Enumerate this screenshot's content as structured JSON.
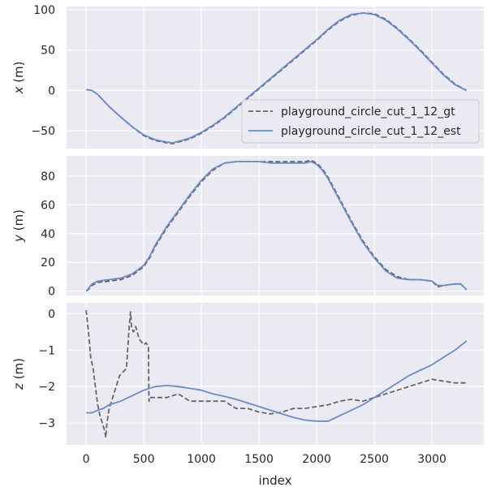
{
  "chart_data": [
    {
      "type": "line",
      "ylabel_var": "x",
      "ylabel_unit": " (m)",
      "xlim": [
        -170,
        3450
      ],
      "ylim": [
        -72,
        104
      ],
      "yticks": [
        -50,
        0,
        50,
        100
      ],
      "xticks": [
        0,
        500,
        1000,
        1500,
        2000,
        2500,
        3000
      ],
      "show_xtick_labels": false,
      "grid": true,
      "legend": "center-right",
      "series": [
        {
          "name": "playground_circle_cut_1_12_gt",
          "color": "#666666",
          "dashed": true,
          "x": [
            0,
            50,
            100,
            200,
            300,
            400,
            500,
            600,
            700,
            750,
            800,
            900,
            1000,
            1100,
            1200,
            1300,
            1400,
            1500,
            1600,
            1700,
            1800,
            1900,
            2000,
            2100,
            2200,
            2300,
            2400,
            2500,
            2600,
            2700,
            2800,
            2900,
            3000,
            3100,
            3200,
            3300
          ],
          "y": [
            1,
            0,
            -5,
            -20,
            -33,
            -45,
            -56,
            -62,
            -65,
            -66,
            -64,
            -60,
            -53,
            -44,
            -34,
            -22,
            -10,
            2,
            14,
            26,
            38,
            50,
            62,
            75,
            86,
            93,
            96,
            95,
            88,
            77,
            64,
            50,
            35,
            20,
            8,
            0
          ]
        },
        {
          "name": "playground_circle_cut_1_12_est",
          "color": "#6b8cc4",
          "dashed": false,
          "x": [
            0,
            50,
            100,
            200,
            300,
            400,
            500,
            600,
            700,
            750,
            800,
            900,
            1000,
            1100,
            1200,
            1300,
            1400,
            1500,
            1600,
            1700,
            1800,
            1900,
            2000,
            2100,
            2200,
            2300,
            2400,
            2500,
            2600,
            2700,
            2800,
            2900,
            3000,
            3100,
            3200,
            3300
          ],
          "y": [
            1,
            0,
            -5,
            -20,
            -33,
            -45,
            -55,
            -61,
            -64,
            -65,
            -63,
            -59,
            -52,
            -43,
            -33,
            -21,
            -9,
            3,
            15,
            27,
            39,
            51,
            63,
            76,
            87,
            94,
            96,
            94,
            87,
            76,
            63,
            49,
            34,
            19,
            7,
            0
          ]
        }
      ]
    },
    {
      "type": "line",
      "ylabel_var": "y",
      "ylabel_unit": " (m)",
      "xlim": [
        -170,
        3450
      ],
      "ylim": [
        -3,
        94
      ],
      "yticks": [
        0,
        20,
        40,
        60,
        80
      ],
      "xticks": [
        0,
        500,
        1000,
        1500,
        2000,
        2500,
        3000
      ],
      "show_xtick_labels": false,
      "grid": true,
      "series": [
        {
          "name": "playground_circle_cut_1_12_gt",
          "color": "#666666",
          "dashed": true,
          "x": [
            0,
            30,
            50,
            100,
            200,
            300,
            400,
            450,
            500,
            550,
            600,
            700,
            800,
            900,
            1000,
            1100,
            1200,
            1300,
            1400,
            1500,
            1600,
            1700,
            1800,
            1900,
            1950,
            2000,
            2050,
            2100,
            2200,
            2300,
            2400,
            2500,
            2600,
            2700,
            2800,
            2900,
            3000,
            3050,
            3100,
            3200,
            3250,
            3300
          ],
          "y": [
            0,
            2,
            4,
            6,
            7,
            8,
            11,
            14,
            17,
            23,
            31,
            44,
            55,
            66,
            76,
            84,
            89,
            90,
            90,
            90,
            90,
            90,
            90,
            90,
            91,
            89,
            85,
            79,
            64,
            49,
            35,
            24,
            15,
            10,
            8,
            8,
            7,
            3,
            4,
            5,
            5,
            1
          ]
        },
        {
          "name": "playground_circle_cut_1_12_est",
          "color": "#6b8cc4",
          "dashed": false,
          "x": [
            0,
            30,
            50,
            100,
            200,
            300,
            400,
            450,
            500,
            550,
            600,
            700,
            800,
            900,
            1000,
            1100,
            1200,
            1300,
            1400,
            1500,
            1600,
            1700,
            1800,
            1900,
            1950,
            2000,
            2050,
            2100,
            2200,
            2300,
            2400,
            2500,
            2600,
            2700,
            2800,
            2900,
            3000,
            3050,
            3100,
            3200,
            3250,
            3300
          ],
          "y": [
            0,
            3,
            5,
            7,
            8,
            9,
            12,
            15,
            18,
            24,
            32,
            45,
            56,
            67,
            77,
            85,
            89,
            90,
            90,
            90,
            89,
            89,
            89,
            89,
            90,
            88,
            84,
            78,
            63,
            48,
            34,
            23,
            14,
            9,
            8,
            8,
            7,
            4,
            4,
            5,
            5,
            1
          ]
        }
      ]
    },
    {
      "type": "line",
      "ylabel_var": "z",
      "ylabel_unit": " (m)",
      "xlabel": "index",
      "xlim": [
        -170,
        3450
      ],
      "ylim": [
        -3.6,
        0.3
      ],
      "yticks": [
        -3,
        -2,
        -1,
        0
      ],
      "xticks": [
        0,
        500,
        1000,
        1500,
        2000,
        2500,
        3000
      ],
      "show_xtick_labels": true,
      "grid": true,
      "series": [
        {
          "name": "playground_circle_cut_1_12_gt",
          "color": "#666666",
          "dashed": true,
          "x": [
            0,
            20,
            40,
            60,
            80,
            100,
            120,
            140,
            160,
            170,
            180,
            200,
            230,
            260,
            290,
            320,
            350,
            370,
            385,
            395,
            410,
            430,
            460,
            500,
            520,
            540,
            545,
            550,
            600,
            700,
            800,
            900,
            1000,
            1100,
            1200,
            1300,
            1400,
            1500,
            1600,
            1700,
            1800,
            1900,
            2000,
            2100,
            2200,
            2300,
            2400,
            2500,
            2600,
            2700,
            2800,
            2900,
            3000,
            3100,
            3200,
            3300
          ],
          "y": [
            0.1,
            -0.5,
            -1.2,
            -1.5,
            -2.0,
            -2.5,
            -2.8,
            -3.0,
            -3.2,
            -3.4,
            -3.0,
            -2.6,
            -2.3,
            -2.0,
            -1.7,
            -1.6,
            -1.5,
            -0.5,
            0.05,
            -0.4,
            -0.5,
            -0.35,
            -0.7,
            -0.85,
            -0.8,
            -0.9,
            -2.4,
            -2.3,
            -2.3,
            -2.3,
            -2.2,
            -2.4,
            -2.4,
            -2.4,
            -2.4,
            -2.6,
            -2.6,
            -2.7,
            -2.75,
            -2.7,
            -2.6,
            -2.6,
            -2.55,
            -2.5,
            -2.4,
            -2.35,
            -2.4,
            -2.3,
            -2.2,
            -2.1,
            -2.0,
            -1.9,
            -1.8,
            -1.85,
            -1.9,
            -1.9
          ]
        },
        {
          "name": "playground_circle_cut_1_12_est",
          "color": "#6b8cc4",
          "dashed": false,
          "x": [
            0,
            50,
            100,
            150,
            200,
            300,
            400,
            500,
            600,
            700,
            800,
            900,
            1000,
            1100,
            1200,
            1300,
            1400,
            1500,
            1600,
            1700,
            1800,
            1900,
            2000,
            2100,
            2200,
            2300,
            2400,
            2500,
            2600,
            2700,
            2800,
            2900,
            3000,
            3100,
            3200,
            3300
          ],
          "y": [
            -2.72,
            -2.72,
            -2.65,
            -2.6,
            -2.5,
            -2.4,
            -2.25,
            -2.1,
            -2.0,
            -1.97,
            -2.0,
            -2.05,
            -2.1,
            -2.2,
            -2.27,
            -2.35,
            -2.45,
            -2.55,
            -2.65,
            -2.75,
            -2.85,
            -2.92,
            -2.95,
            -2.95,
            -2.8,
            -2.65,
            -2.5,
            -2.3,
            -2.1,
            -1.9,
            -1.7,
            -1.55,
            -1.4,
            -1.2,
            -1.0,
            -0.75
          ]
        }
      ]
    }
  ]
}
